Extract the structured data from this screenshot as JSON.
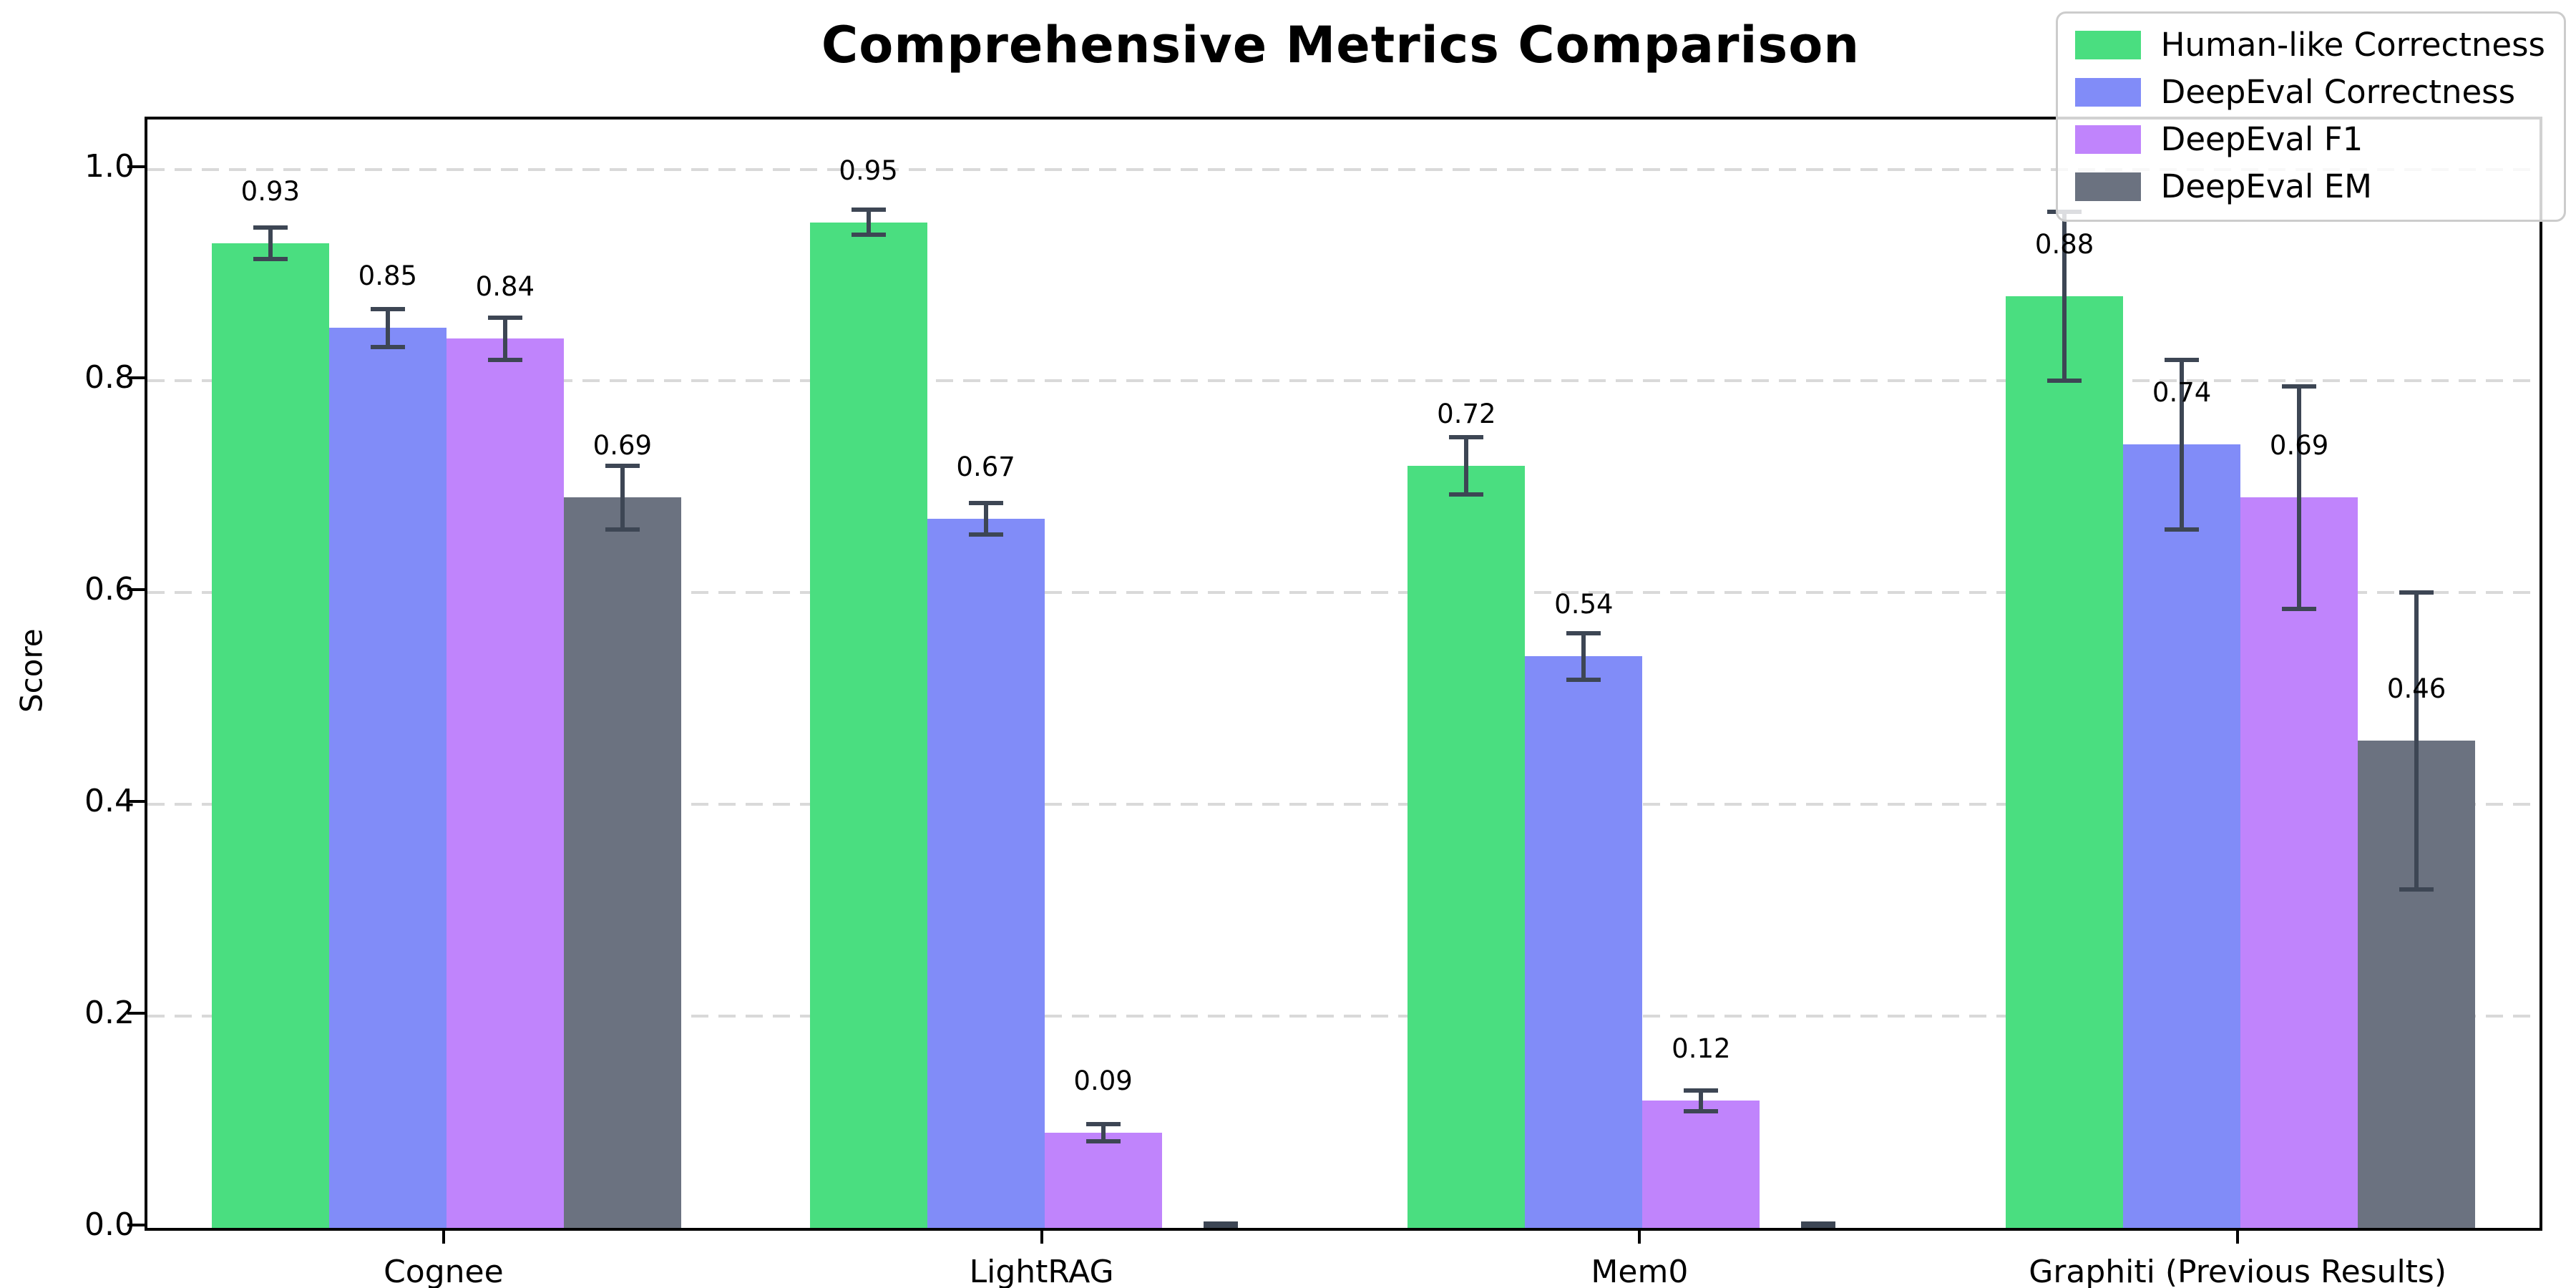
{
  "chart_data": {
    "type": "bar",
    "title": "Comprehensive Metrics Comparison",
    "xlabel": "",
    "ylabel": "Score",
    "ylim": [
      0,
      1.047
    ],
    "grid": "dashed-horizontal",
    "legend_position": "top-right",
    "categories": [
      "Cognee",
      "LightRAG",
      "Mem0",
      "Graphiti (Previous Results)"
    ],
    "yticks": {
      "values": [
        0.0,
        0.2,
        0.4,
        0.6,
        0.8,
        1.0
      ],
      "labels": [
        "0.0",
        "0.2",
        "0.4",
        "0.6",
        "0.8",
        "1.0"
      ]
    },
    "series": [
      {
        "name": "Human-like Correctness",
        "color": "#4ade80",
        "values": [
          0.93,
          0.95,
          0.72,
          0.88
        ],
        "errors": [
          0.015,
          0.012,
          0.027,
          0.08
        ],
        "labels": [
          "0.93",
          "0.95",
          "0.72",
          "0.88"
        ]
      },
      {
        "name": "DeepEval Correctness",
        "color": "#818cf8",
        "values": [
          0.85,
          0.67,
          0.54,
          0.74
        ],
        "errors": [
          0.018,
          0.015,
          0.022,
          0.08
        ],
        "labels": [
          "0.85",
          "0.67",
          "0.54",
          "0.74"
        ]
      },
      {
        "name": "DeepEval F1",
        "color": "#c084fc",
        "values": [
          0.84,
          0.09,
          0.12,
          0.69
        ],
        "errors": [
          0.02,
          0.008,
          0.01,
          0.105
        ],
        "labels": [
          "0.84",
          "0.09",
          "0.12",
          "0.69"
        ]
      },
      {
        "name": "DeepEval EM",
        "color": "#6b7280",
        "values": [
          0.69,
          0.0,
          0.0,
          0.46
        ],
        "errors": [
          0.03,
          0.004,
          0.004,
          0.14
        ],
        "labels": [
          "0.69",
          "",
          "",
          "0.46"
        ]
      }
    ],
    "colors": {
      "error_bar": "#3d4654",
      "grid": "#d9d9d9",
      "axis": "#000000",
      "legend_border": "#cccccc",
      "background": "#ffffff"
    }
  }
}
